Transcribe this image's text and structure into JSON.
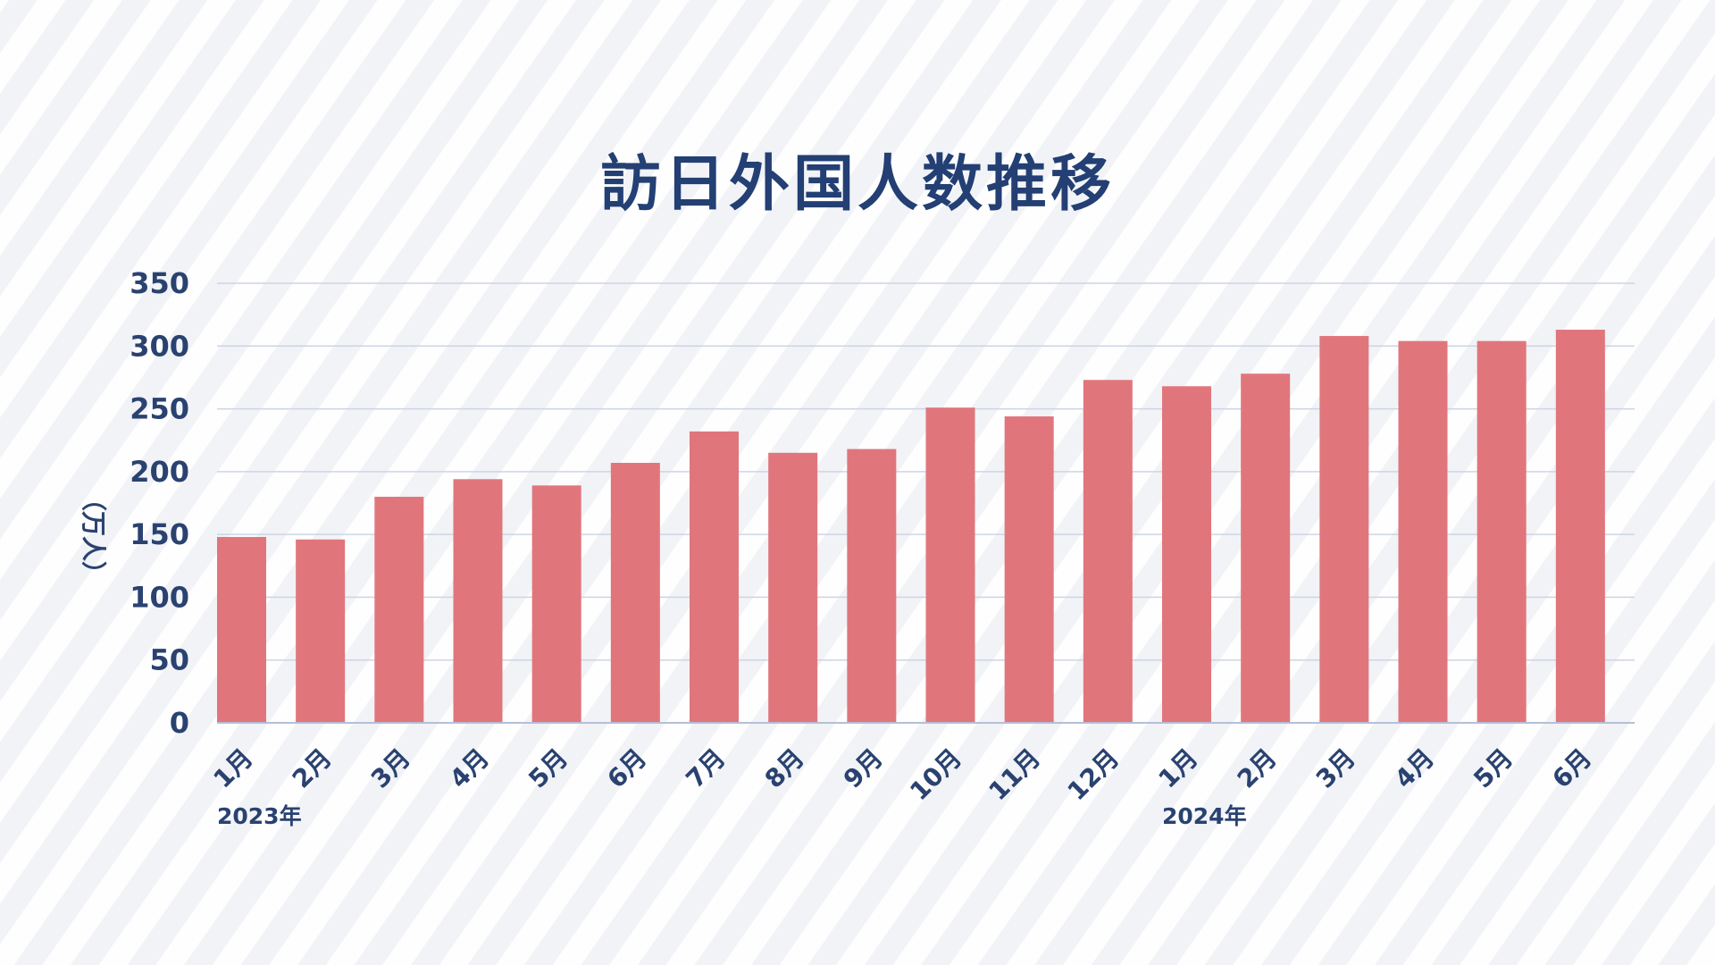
{
  "colors": {
    "title": "#233f73",
    "text": "#2a4270",
    "bar": "#e0767b",
    "grid": "#cdd4e4",
    "axis": "#b5bfd6"
  },
  "chart_data": {
    "type": "bar",
    "title": "訪日外国人数推移",
    "ylabel": "（万人）",
    "xlabel": "",
    "ylim": [
      0,
      350
    ],
    "yticks": [
      0,
      50,
      100,
      150,
      200,
      250,
      300,
      350
    ],
    "grid": true,
    "categories": [
      "1月",
      "2月",
      "3月",
      "4月",
      "5月",
      "6月",
      "7月",
      "8月",
      "9月",
      "10月",
      "11月",
      "12月",
      "1月",
      "2月",
      "3月",
      "4月",
      "5月",
      "6月"
    ],
    "year_labels": [
      {
        "text": "2023年",
        "category_index": 0
      },
      {
        "text": "2024年",
        "category_index": 12
      }
    ],
    "values": [
      148,
      146,
      180,
      194,
      189,
      207,
      232,
      215,
      218,
      251,
      244,
      273,
      268,
      278,
      308,
      304,
      304,
      313
    ]
  }
}
